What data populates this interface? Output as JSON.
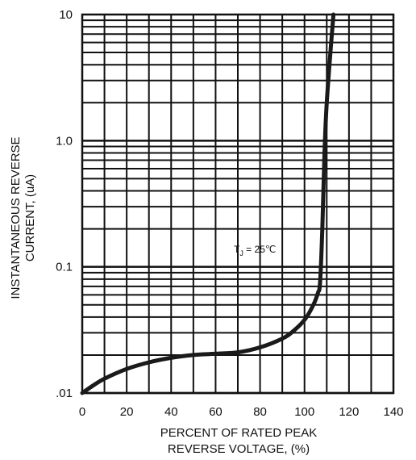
{
  "chart_data": {
    "type": "line",
    "title": "",
    "xlabel_lines": [
      "PERCENT OF RATED PEAK",
      "REVERSE VOLTAGE, (%)"
    ],
    "ylabel_lines": [
      "INSTANTANEOUS REVERSE",
      "CURRENT, (uA)"
    ],
    "x_ticks": [
      "0",
      "20",
      "40",
      "60",
      "80",
      "100",
      "120",
      "140"
    ],
    "y_ticks": [
      "10",
      "1.0",
      "0.1",
      ".01"
    ],
    "xlim": [
      0,
      140
    ],
    "ylim": [
      0.01,
      10
    ],
    "y_scale": "log",
    "grid": true,
    "annotation": {
      "main": "T",
      "sub": "J",
      "rest": " = 25℃"
    },
    "series": [
      {
        "x": [
          0,
          5,
          10,
          20,
          30,
          40,
          50,
          60,
          70,
          80,
          90,
          95,
          100,
          104,
          106,
          107,
          108,
          109,
          110,
          112,
          113
        ],
        "y": [
          0.01,
          0.0115,
          0.013,
          0.0155,
          0.0175,
          0.019,
          0.02,
          0.0205,
          0.021,
          0.023,
          0.027,
          0.031,
          0.038,
          0.05,
          0.062,
          0.075,
          0.2,
          0.8,
          2.0,
          6.0,
          10
        ]
      }
    ]
  }
}
